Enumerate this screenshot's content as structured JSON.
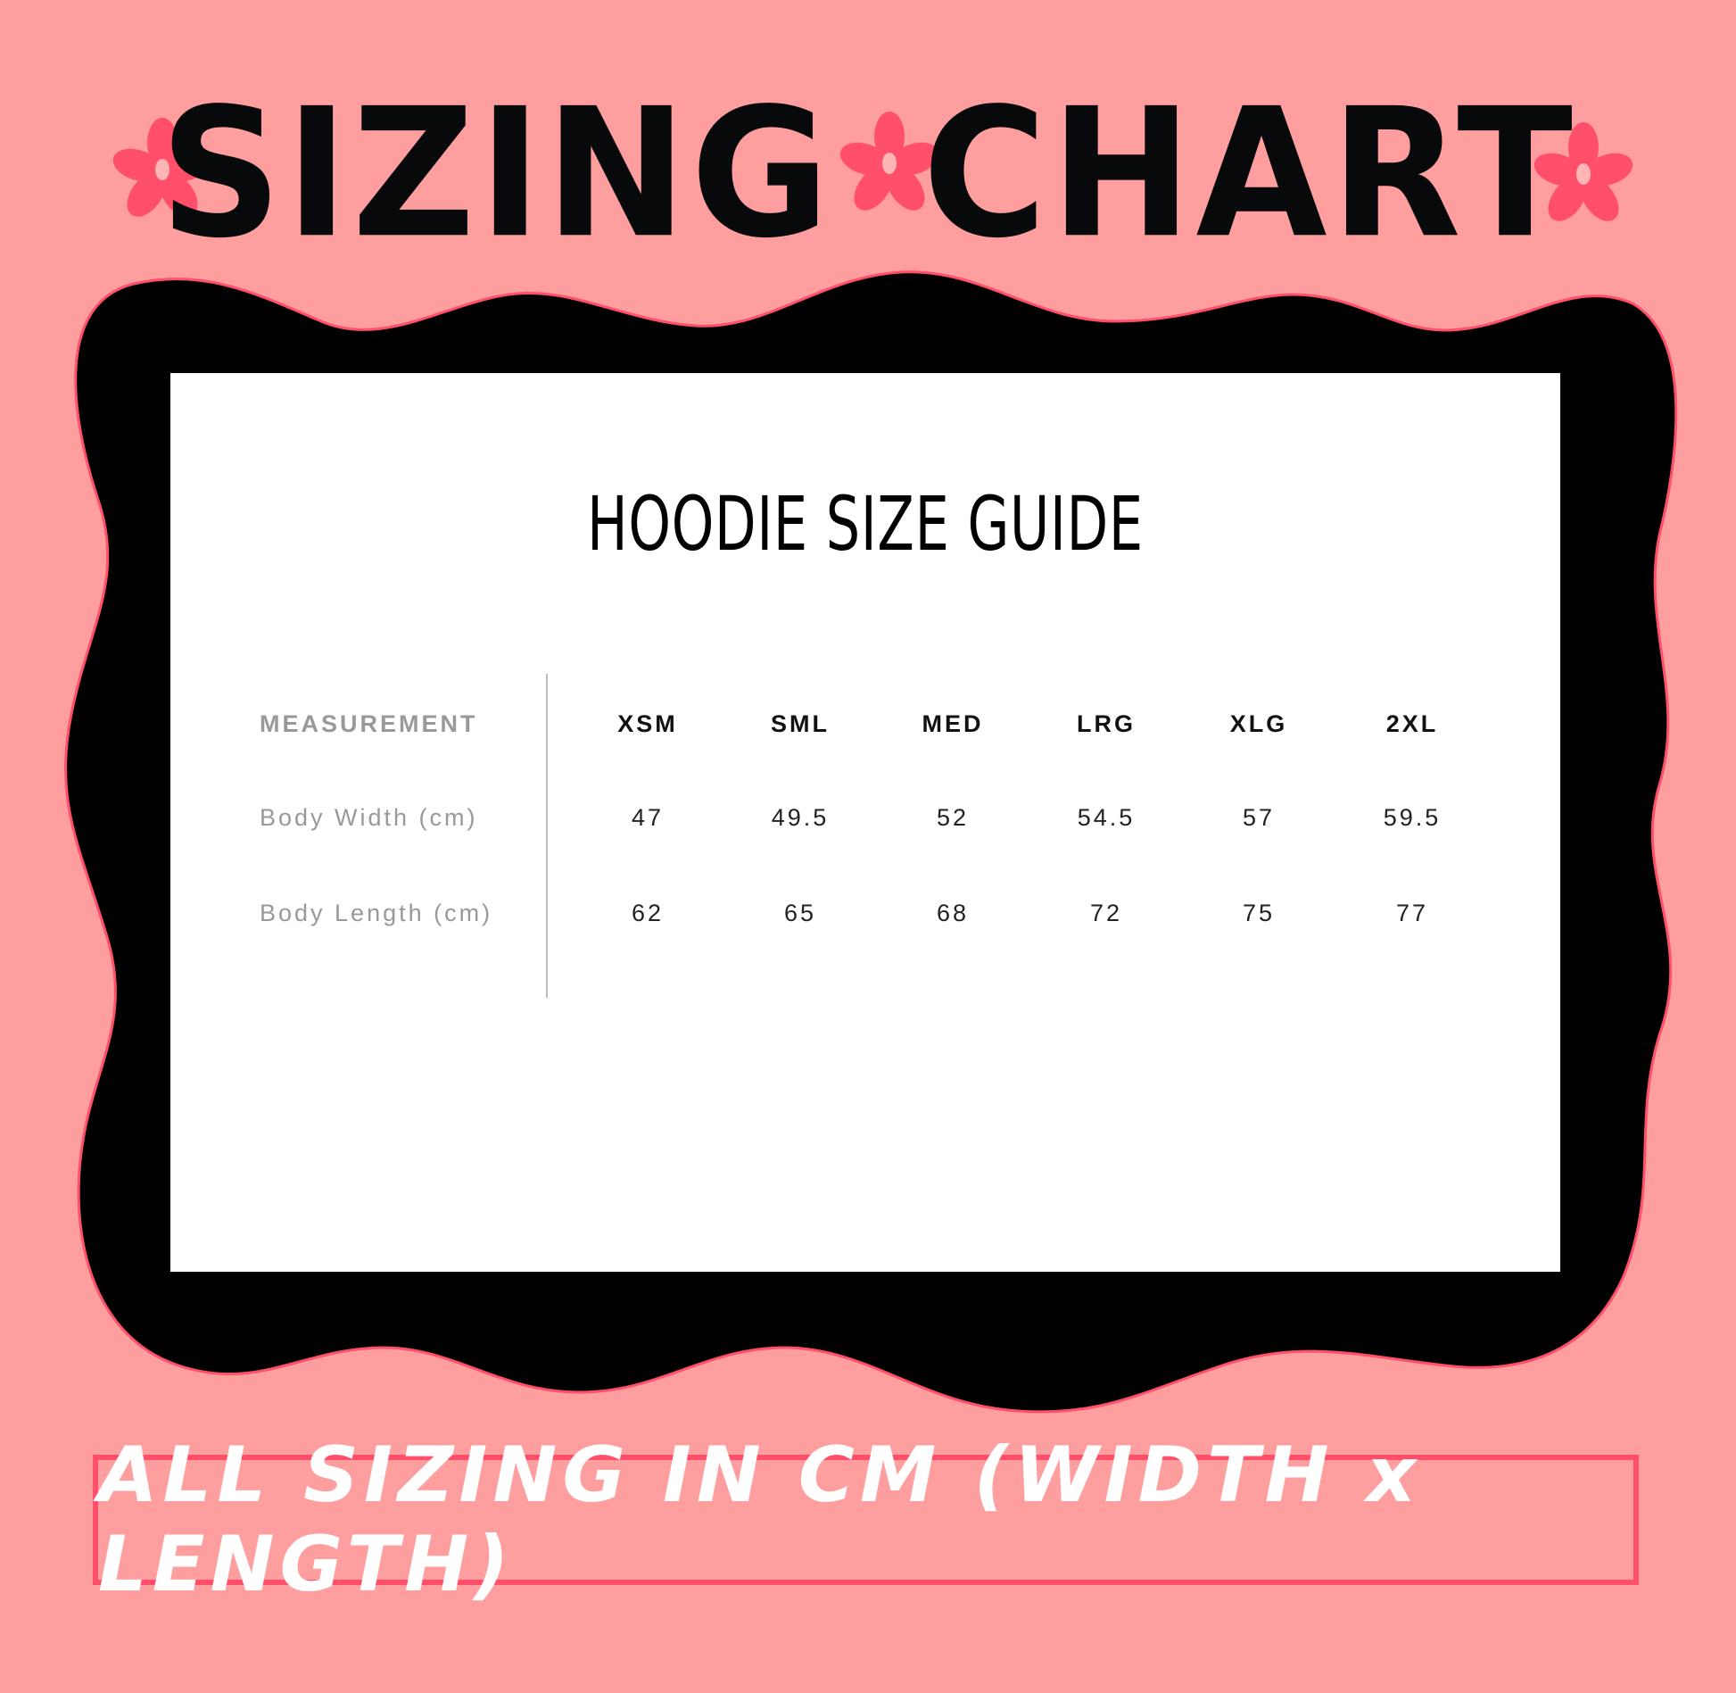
{
  "colors": {
    "background": "#ff9e9e",
    "accent": "#ff4f6a",
    "blob": "#000000",
    "panel": "#ffffff"
  },
  "header": {
    "words": [
      "SIZING",
      "CHART"
    ],
    "icon": "flower-icon"
  },
  "guide": {
    "title": "HOODIE SIZE GUIDE",
    "columns": [
      "MEASUREMENT",
      "XSM",
      "SML",
      "MED",
      "LRG",
      "XLG",
      "2XL"
    ],
    "rows": [
      {
        "label": "Body Width (cm)",
        "values": [
          "47",
          "49.5",
          "52",
          "54.5",
          "57",
          "59.5"
        ]
      },
      {
        "label": "Body Length (cm)",
        "values": [
          "62",
          "65",
          "68",
          "72",
          "75",
          "77"
        ]
      }
    ]
  },
  "footer": {
    "note": "ALL SIZING IN CM (WIDTH x LENGTH)"
  }
}
